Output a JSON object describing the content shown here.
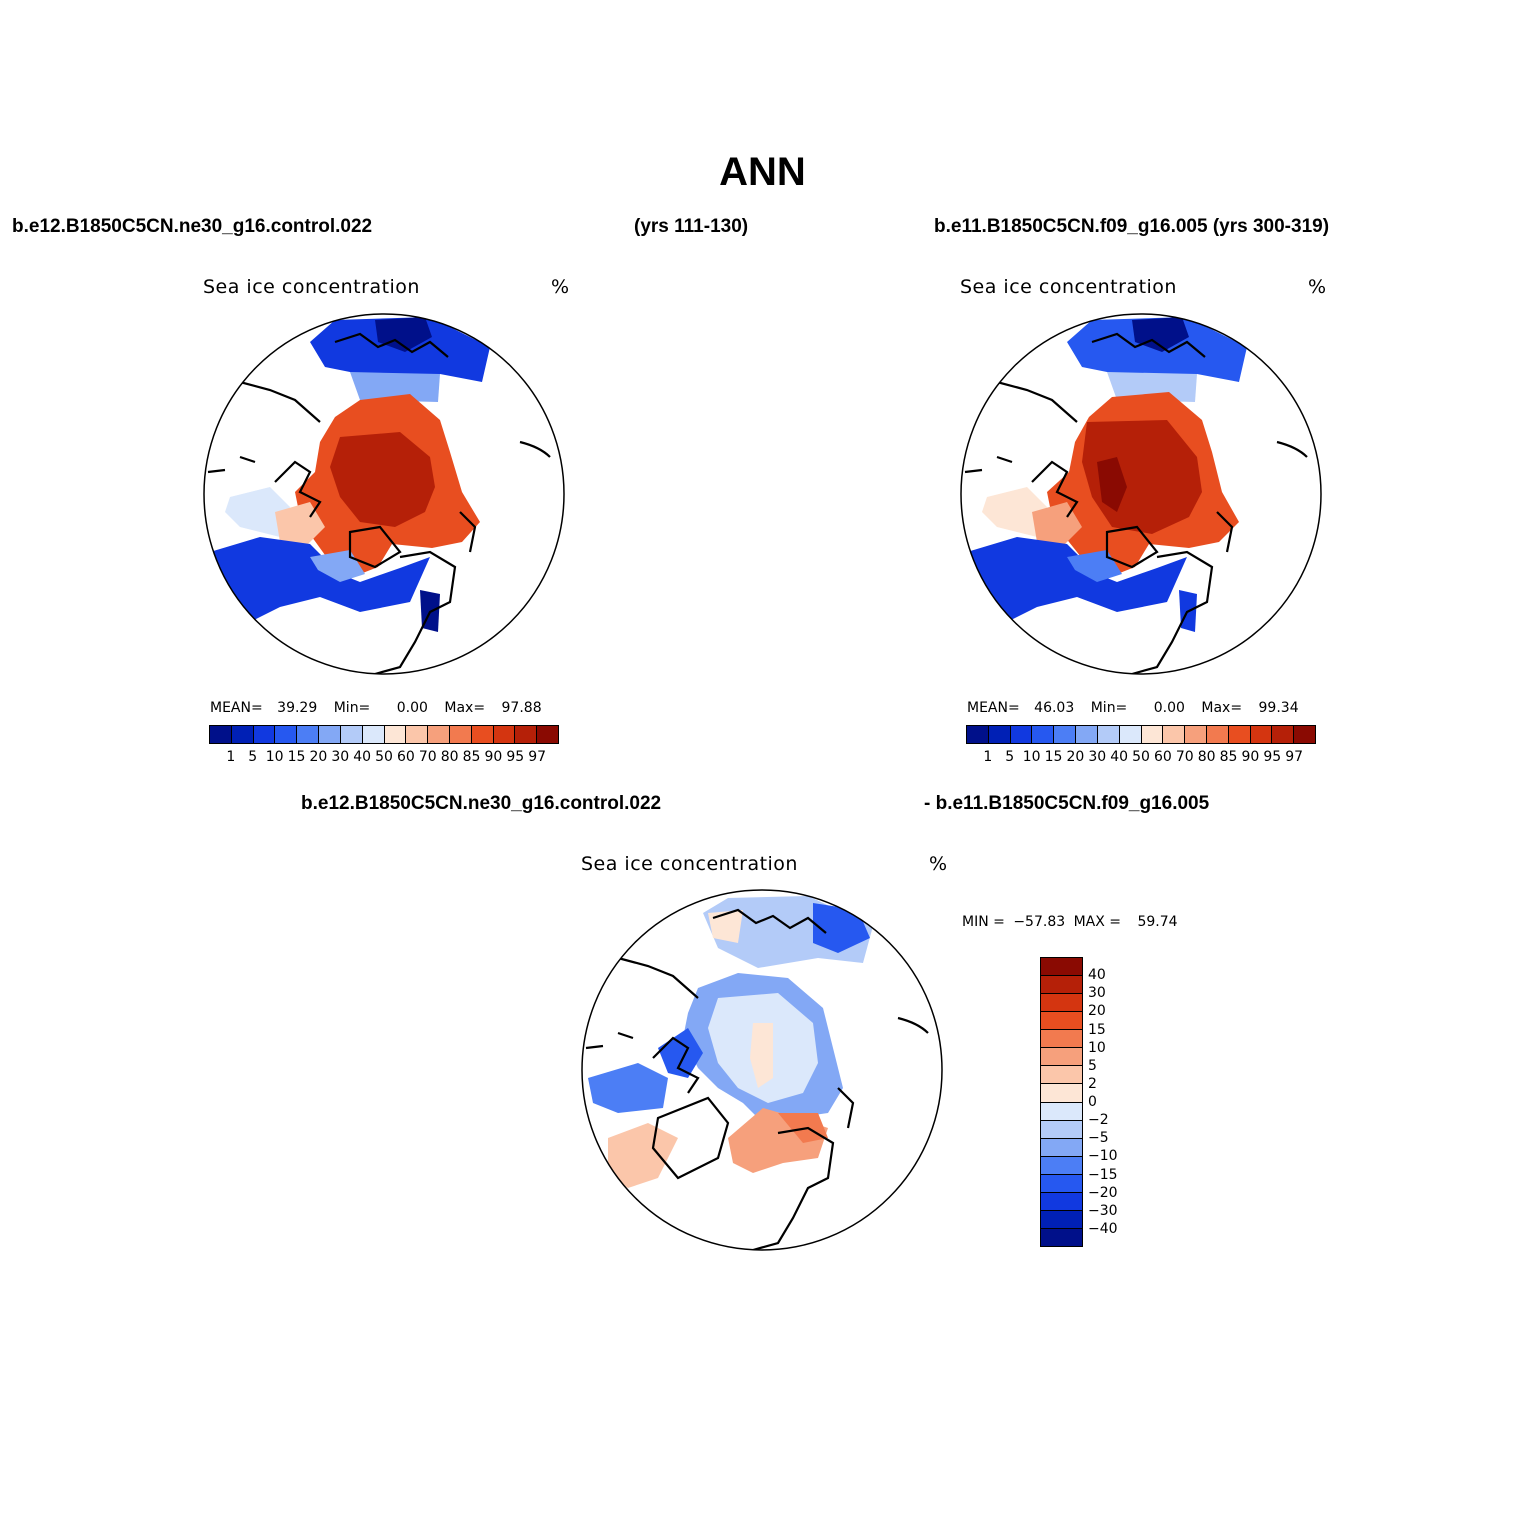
{
  "figure": {
    "title": "ANN"
  },
  "panels": [
    {
      "case_left": "b.e12.B1850C5CN.ne30_g16.control.022",
      "case_right": "(yrs 111-130)",
      "variable": "Sea ice concentration",
      "units": "%",
      "stats": {
        "mean_label": "MEAN=",
        "mean": "39.29",
        "min_label": "Min=",
        "min": "0.00",
        "max_label": "Max=",
        "max": "97.88"
      }
    },
    {
      "case_left": "b.e11.B1850C5CN.f09_g16.005 (yrs 300-319)",
      "variable": "Sea ice concentration",
      "units": "%",
      "stats": {
        "mean_label": "MEAN=",
        "mean": "46.03",
        "min_label": "Min=",
        "min": "0.00",
        "max_label": "Max=",
        "max": "99.34"
      }
    },
    {
      "case_left": "b.e12.B1850C5CN.ne30_g16.control.022",
      "case_right": "- b.e11.B1850C5CN.f09_g16.005",
      "variable": "Sea ice concentration",
      "units": "%",
      "stats": {
        "min_label": "MIN =",
        "min": "−57.83",
        "max_label": "MAX =",
        "max": "59.74"
      }
    }
  ],
  "colorbar_abs": {
    "colors": [
      "#00108a",
      "#0020b5",
      "#1139e0",
      "#2658f0",
      "#4c7ef5",
      "#83a8f5",
      "#b3cbf8",
      "#dbe8fb",
      "#fde6d6",
      "#fbc6aa",
      "#f6a07c",
      "#f27a4f",
      "#e84e20",
      "#d43510",
      "#b52008",
      "#8a0a02"
    ],
    "ticks": [
      "1",
      "5",
      "10",
      "15",
      "20",
      "30",
      "40",
      "50",
      "60",
      "70",
      "80",
      "85",
      "90",
      "95",
      "97"
    ]
  },
  "colorbar_diff": {
    "colors": [
      "#8a0a02",
      "#b52008",
      "#d43510",
      "#e84e20",
      "#f27a4f",
      "#f6a07c",
      "#fbc6aa",
      "#fde6d6",
      "#dbe8fb",
      "#b3cbf8",
      "#83a8f5",
      "#4c7ef5",
      "#2658f0",
      "#1139e0",
      "#0020b5",
      "#00108a"
    ],
    "ticks": [
      "40",
      "30",
      "20",
      "15",
      "10",
      "5",
      "2",
      "0",
      "−2",
      "−5",
      "−10",
      "−15",
      "−20",
      "−30",
      "−40"
    ]
  }
}
